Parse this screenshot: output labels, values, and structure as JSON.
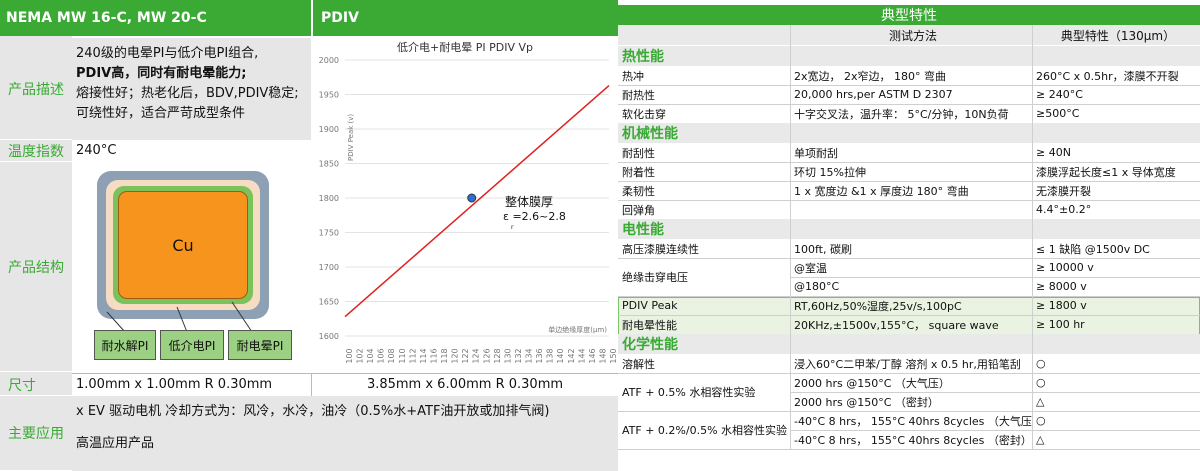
{
  "left": {
    "header_title": "NEMA MW 16-C, MW 20-C",
    "header_pdiv": "PDIV",
    "desc_label": "产品描述",
    "desc_lines": [
      "240级的电晕PI与低介电PI组合,",
      "PDIV高，同时有耐电晕能力;",
      "熔接性好；热老化后，BDV,PDIV稳定;",
      "可绕性好，适合严苛成型条件"
    ],
    "temp_label": "温度指数",
    "temp_value": "240°C",
    "struct_label": "产品结构",
    "struct_core": "Cu",
    "struct_tags": [
      "耐水解PI",
      "低介电PI",
      "耐电晕PI"
    ],
    "size_label": "尺寸",
    "size_value1": "1.00mm x 1.00mm R 0.30mm",
    "size_value2": "3.85mm x 6.00mm R 0.30mm",
    "app_label": "主要应用",
    "app_lines": [
      "x EV 驱动电机 冷却方式为：风冷，水冷，油冷（0.5%水+ATF油开放或加排气阀)",
      "高温应用产品"
    ],
    "colors": {
      "accent": "#3aaa35",
      "core": "#f7941d",
      "line": "#e02020"
    }
  },
  "chart_data": {
    "type": "line",
    "title": "低介电+耐电晕 PI PDIV Vp",
    "ylabel": "PDIV Peak (v)",
    "xlabel": "单边绝缘厚度(μm)",
    "ylim": [
      1600,
      2000
    ],
    "xlim": [
      100,
      150
    ],
    "yticks": [
      "2000",
      "1950",
      "1900",
      "1850",
      "1800",
      "1750",
      "1700",
      "1650",
      "1600"
    ],
    "xticks": [
      "100",
      "102",
      "104",
      "106",
      "108",
      "110",
      "112",
      "114",
      "116",
      "118",
      "120",
      "122",
      "124",
      "126",
      "128",
      "130",
      "132",
      "134",
      "136",
      "138",
      "140",
      "142",
      "144",
      "146",
      "148",
      "150"
    ],
    "series": [
      {
        "x": [
          100,
          150
        ],
        "values": [
          1628,
          1963
        ]
      }
    ],
    "marker": {
      "x": 124,
      "y": 1800
    },
    "annotation_title": "整体膜厚",
    "annotation_value": "ε =2.6~2.8",
    "annotation_sub": "r",
    "grid": true
  },
  "right": {
    "title": "典型特性",
    "col_method": "测试方法",
    "col_value": "典型特性（130μm）",
    "sections": {
      "thermal": "热性能",
      "mech": "机械性能",
      "elec": "电性能",
      "chem": "化学性能"
    },
    "rows": [
      [
        "热冲",
        "2x宽边， 2x窄边， 180° 弯曲",
        "260°C x 0.5hr，漆膜不开裂"
      ],
      [
        "耐热性",
        "20,000 hrs,per ASTM D 2307",
        "≥ 240°C"
      ],
      [
        "软化击穿",
        "十字交叉法，温升率： 5°C/分钟，10N负荷",
        "≥500°C"
      ],
      [
        "耐刮性",
        "单项耐刮",
        "≥ 40N"
      ],
      [
        "附着性",
        "环切 15%拉伸",
        "漆膜浮起长度≤1 x 导体宽度"
      ],
      [
        "柔韧性",
        "1 x 宽度边 &1 x 厚度边 180° 弯曲",
        "无漆膜开裂"
      ],
      [
        "回弹角",
        "",
        "4.4°±0.2°"
      ],
      [
        "高压漆膜连续性",
        "100ft, 碳刷",
        "≤ 1 缺陷 @1500v DC"
      ],
      [
        "绝缘击穿电压",
        "@室温",
        "≥ 10000 v"
      ],
      [
        "",
        "@180°C",
        "≥ 8000 v"
      ],
      [
        "PDIV Peak",
        "RT,60Hz,50%湿度,25v/s,100pC",
        "≥ 1800 v"
      ],
      [
        "耐电晕性能",
        "20KHz,±1500v,155°C， square wave",
        "≥ 100 hr"
      ],
      [
        "溶解性",
        "浸入60°C二甲苯/丁醇 溶剂 x 0.5 hr,用铅笔刮",
        "○"
      ],
      [
        "ATF + 0.5% 水相容性实验",
        "2000 hrs @150°C （大气压）",
        "○"
      ],
      [
        "",
        "2000 hrs @150°C （密封）",
        "△"
      ],
      [
        "ATF + 0.2%/0.5% 水相容性实验",
        "-40°C 8 hrs， 155°C 40hrs 8cycles （大气压）",
        "○"
      ],
      [
        "",
        "-40°C 8 hrs， 155°C 40hrs 8cycles （密封）",
        "△"
      ]
    ]
  }
}
